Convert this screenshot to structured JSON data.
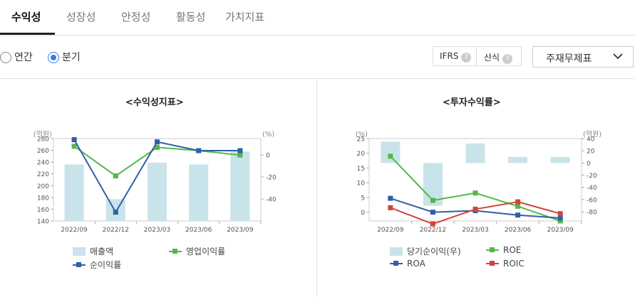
{
  "tabs": [
    "수익성",
    "성장성",
    "안정성",
    "활동성",
    "가치지표"
  ],
  "period": {
    "annual": "연간",
    "quarterly": "분기",
    "selected": "분기"
  },
  "ifrs": {
    "label": "IFRS",
    "formula": "산식",
    "help": "?"
  },
  "statement_select": {
    "value": "주재무제표"
  },
  "colors": {
    "bar": "#c9e3ea",
    "green": "#52b848",
    "blue": "#2f5fa8",
    "red": "#d0443a",
    "accent": "#3b7be0"
  },
  "chart_data": [
    {
      "type": "bar+line",
      "title": "<수익성지표>",
      "left_unit": "(억원)",
      "right_unit": "(%)",
      "categories": [
        "2022/09",
        "2022/12",
        "2023/03",
        "2023/06",
        "2023/09"
      ],
      "left_ticks": [
        "280",
        "260",
        "240",
        "220",
        "200",
        "180",
        "160",
        "140"
      ],
      "right_ticks": [
        "0",
        "-20",
        "-40"
      ],
      "ylim_left": [
        140,
        280
      ],
      "ylim_right": [
        -60,
        15
      ],
      "bars": {
        "name": "매출액",
        "values": [
          236,
          177,
          239,
          236,
          258
        ]
      },
      "lines": [
        {
          "name": "영업이익률",
          "color": "#52b848",
          "values": [
            8,
            -19,
            7,
            4,
            0
          ]
        },
        {
          "name": "순이익률",
          "color": "#2f5fa8",
          "values": [
            14,
            -52,
            12,
            4,
            4
          ]
        }
      ]
    },
    {
      "type": "bar+line",
      "title": "<투자수익률>",
      "left_unit": "(%)",
      "right_unit": "(억원)",
      "categories": [
        "2022/09",
        "2022/12",
        "2023/03",
        "2023/06",
        "2023/09"
      ],
      "left_ticks": [
        "25",
        "20",
        "15",
        "10",
        "5",
        "0"
      ],
      "right_ticks": [
        "40",
        "20",
        "0",
        "-20",
        "-40",
        "-60",
        "-80"
      ],
      "ylim_left": [
        -3,
        25
      ],
      "ylim_right": [
        -95,
        40
      ],
      "bars": {
        "name": "당기순이익(우)",
        "values": [
          35,
          -70,
          32,
          10,
          10
        ]
      },
      "lines": [
        {
          "name": "ROE",
          "color": "#52b848",
          "values": [
            19,
            4,
            6.5,
            2,
            -3
          ]
        },
        {
          "name": "ROA",
          "color": "#2f5fa8",
          "values": [
            4.7,
            0,
            0.5,
            -1,
            -2
          ]
        },
        {
          "name": "ROIC",
          "color": "#d0443a",
          "values": [
            1.5,
            -4,
            1,
            3.5,
            -0.5
          ]
        }
      ]
    }
  ]
}
